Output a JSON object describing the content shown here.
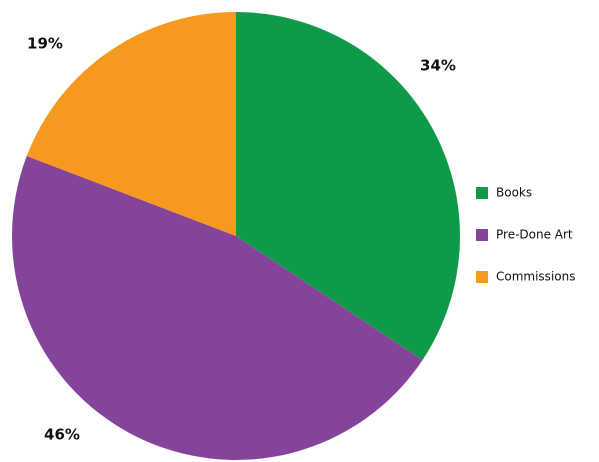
{
  "chart_data": {
    "type": "pie",
    "categories": [
      "Books",
      "Pre-Done Art",
      "Commissions"
    ],
    "values": [
      34,
      46,
      19
    ],
    "value_labels": [
      "34%",
      "46%",
      "19%"
    ],
    "colors": [
      "#0f9a4a",
      "#84449a",
      "#f7981f"
    ],
    "legend": "right"
  }
}
